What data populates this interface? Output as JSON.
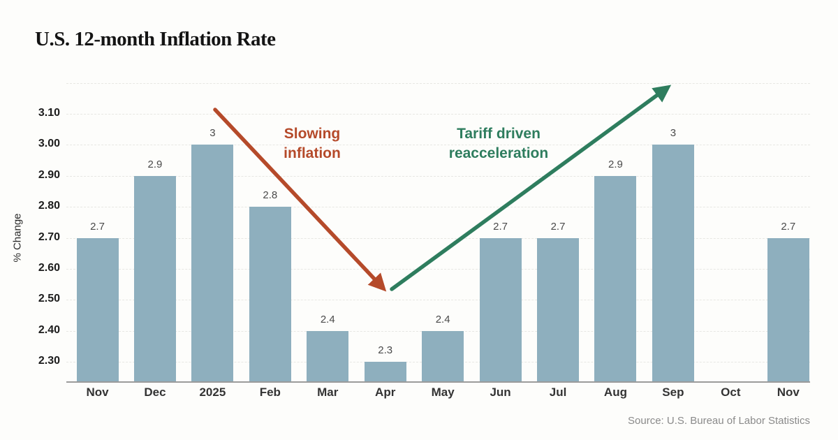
{
  "page": {
    "background": "#fdfdfb"
  },
  "chart_data": {
    "type": "bar",
    "title": "U.S. 12-month Inflation Rate",
    "categories": [
      "Nov",
      "Dec",
      "2025",
      "Feb",
      "Mar",
      "Apr",
      "May",
      "Jun",
      "Jul",
      "Aug",
      "Sep",
      "Oct",
      "Nov"
    ],
    "values": [
      2.7,
      2.9,
      3,
      2.8,
      2.4,
      2.3,
      2.4,
      2.7,
      2.7,
      2.9,
      3,
      null,
      2.7
    ],
    "bar_labels": [
      "2.7",
      "2.9",
      "3",
      "2.8",
      "2.4",
      "2.3",
      "2.4",
      "2.7",
      "2.7",
      "2.9",
      "3",
      "",
      "2.7"
    ],
    "xlabel": "",
    "ylabel": "% Change",
    "yticks": [
      {
        "value": 3.1,
        "label": "3.10"
      },
      {
        "value": 3.0,
        "label": "3.00"
      },
      {
        "value": 2.9,
        "label": "2.90"
      },
      {
        "value": 2.8,
        "label": "2.80"
      },
      {
        "value": 2.7,
        "label": "2.70"
      },
      {
        "value": 2.6,
        "label": "2.60"
      },
      {
        "value": 2.5,
        "label": "2.50"
      },
      {
        "value": 2.4,
        "label": "2.40"
      },
      {
        "value": 2.3,
        "label": "2.30"
      }
    ],
    "ylim": [
      2.235,
      3.215
    ],
    "grid": "horizontal-dashed",
    "legend": "none",
    "bar_color": "#8eafbe",
    "annotations": [
      {
        "text": "Slowing inflation",
        "lines": [
          "Slowing",
          "inflation"
        ],
        "color": "#b54a2a",
        "arrow_direction": "down-right"
      },
      {
        "text": "Tariff driven reacceleration",
        "lines": [
          "Tariff driven",
          "reacceleration"
        ],
        "color": "#2e7d5e",
        "arrow_direction": "up-right"
      }
    ]
  },
  "footer": {
    "source": "Source: U.S. Bureau of Labor Statistics"
  }
}
